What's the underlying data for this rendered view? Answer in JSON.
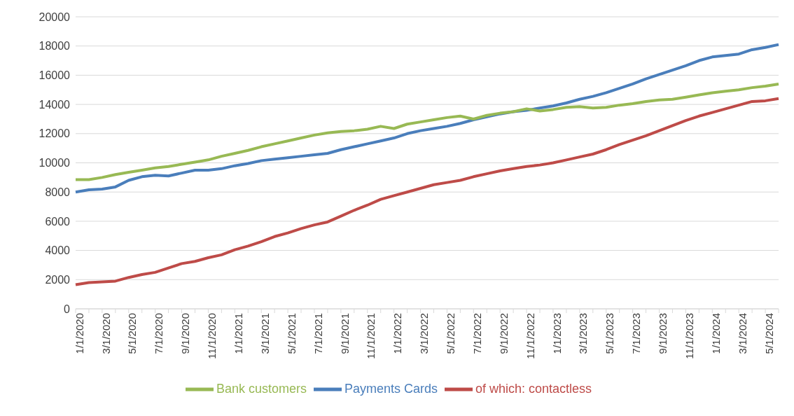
{
  "chart_data": {
    "type": "line",
    "categories": [
      "1/1/2020",
      null,
      "3/1/2020",
      null,
      "5/1/2020",
      null,
      "7/1/2020",
      null,
      "9/1/2020",
      null,
      "11/1/2020",
      null,
      "1/1/2021",
      null,
      "3/1/2021",
      null,
      "5/1/2021",
      null,
      "7/1/2021",
      null,
      "9/1/2021",
      null,
      "11/1/2021",
      null,
      "1/1/2022",
      null,
      "3/1/2022",
      null,
      "5/1/2022",
      null,
      "7/1/2022",
      null,
      "9/1/2022",
      null,
      "11/1/2022",
      null,
      "1/1/2023",
      null,
      "3/1/2023",
      null,
      "5/1/2023",
      null,
      "7/1/2023",
      null,
      "9/1/2023",
      null,
      "11/1/2023",
      null,
      "1/1/2024",
      null,
      "3/1/2024",
      null,
      "5/1/2024",
      null
    ],
    "series": [
      {
        "name": "Payments Cards",
        "color": "#4a7ebb",
        "values": [
          8000,
          8150,
          8200,
          8350,
          8800,
          9050,
          9150,
          9100,
          9300,
          9500,
          9500,
          9600,
          9800,
          9950,
          10150,
          10250,
          10350,
          10450,
          10550,
          10650,
          10900,
          11100,
          11300,
          11500,
          11700,
          12000,
          12200,
          12350,
          12500,
          12700,
          12950,
          13150,
          13350,
          13500,
          13600,
          13750,
          13900,
          14100,
          14350,
          14550,
          14800,
          15100,
          15400,
          15750,
          16050,
          16350,
          16650,
          17000,
          17250,
          17350,
          17450,
          17750,
          17900,
          18100
        ]
      },
      {
        "name": "of which: contactless",
        "color": "#be4b48",
        "values": [
          1650,
          1800,
          1850,
          1900,
          2150,
          2350,
          2500,
          2800,
          3100,
          3250,
          3500,
          3700,
          4050,
          4300,
          4600,
          4950,
          5200,
          5500,
          5750,
          5950,
          6350,
          6750,
          7100,
          7500,
          7750,
          8000,
          8250,
          8500,
          8650,
          8800,
          9050,
          9250,
          9450,
          9600,
          9750,
          9850,
          10000,
          10200,
          10400,
          10600,
          10900,
          11250,
          11550,
          11850,
          12200,
          12550,
          12900,
          13200,
          13450,
          13700,
          13950,
          14200,
          14250,
          14400
        ]
      },
      {
        "name": "Bank customers",
        "color": "#98b954",
        "values": [
          8850,
          8850,
          9000,
          9200,
          9350,
          9500,
          9650,
          9750,
          9900,
          10050,
          10200,
          10450,
          10650,
          10850,
          11100,
          11300,
          11500,
          11700,
          11900,
          12050,
          12150,
          12200,
          12300,
          12500,
          12350,
          12650,
          12800,
          12950,
          13100,
          13200,
          13000,
          13250,
          13400,
          13500,
          13700,
          13550,
          13650,
          13800,
          13850,
          13750,
          13800,
          13950,
          14050,
          14200,
          14300,
          14350,
          14500,
          14650,
          14800,
          14900,
          15000,
          15150,
          15250,
          15400
        ]
      }
    ],
    "ylim": [
      0,
      20000
    ],
    "yticks": [
      0,
      2000,
      4000,
      6000,
      8000,
      10000,
      12000,
      14000,
      16000,
      18000,
      20000
    ],
    "grid": "y",
    "legend": "bottom",
    "marker": "none",
    "line_style": "solid"
  }
}
